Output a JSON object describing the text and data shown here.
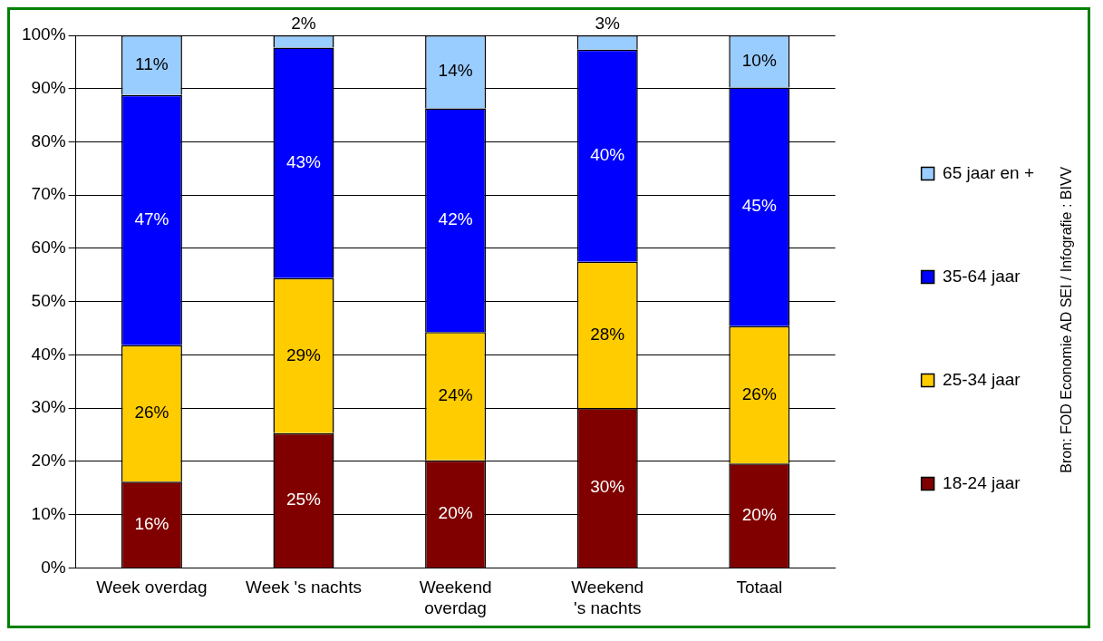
{
  "chart_data": {
    "type": "bar",
    "stacked": true,
    "categories": [
      "Week overdag",
      "Week 's nachts",
      "Weekend overdag",
      "Weekend 's nachts",
      "Totaal"
    ],
    "series": [
      {
        "name": "18-24 jaar",
        "color": "#800000",
        "values": [
          16.2,
          25.3,
          20.2,
          30,
          19.6
        ],
        "value_labels": [
          "16%",
          "25%",
          "20%",
          "30%",
          "20%"
        ]
      },
      {
        "name": "25-34 jaar",
        "color": "#ffcc00",
        "values": [
          25.6,
          29.1,
          24.1,
          27.5,
          25.8
        ],
        "value_labels": [
          "26%",
          "29%",
          "24%",
          "28%",
          "26%"
        ]
      },
      {
        "name": "35-64 jaar",
        "color": "#0000ff",
        "values": [
          47,
          43.3,
          42,
          39.8,
          44.8
        ],
        "value_labels": [
          "47%",
          "43%",
          "42%",
          "40%",
          "45%"
        ]
      },
      {
        "name": "65 jaar en +",
        "color": "#99ccff",
        "values": [
          11.2,
          2.3,
          13.7,
          2.7,
          9.8
        ],
        "value_labels": [
          "11%",
          "2%",
          "14%",
          "3%",
          "10%"
        ]
      }
    ],
    "ylim": [
      0,
      100
    ],
    "yticks": [
      {
        "value": 0,
        "label": "0%"
      },
      {
        "value": 10,
        "label": "10%"
      },
      {
        "value": 20,
        "label": "20%"
      },
      {
        "value": 30,
        "label": "30%"
      },
      {
        "value": 40,
        "label": "40%"
      },
      {
        "value": 50,
        "label": "50%"
      },
      {
        "value": 60,
        "label": "60%"
      },
      {
        "value": 70,
        "label": "70%"
      },
      {
        "value": 80,
        "label": "80%"
      },
      {
        "value": 90,
        "label": "90%"
      },
      {
        "value": 100,
        "label": "100%"
      }
    ],
    "grid": "y",
    "legend": "right",
    "annotations": [
      "Bron: FOD Economie AD SEI / Infografie : BIVV"
    ]
  }
}
